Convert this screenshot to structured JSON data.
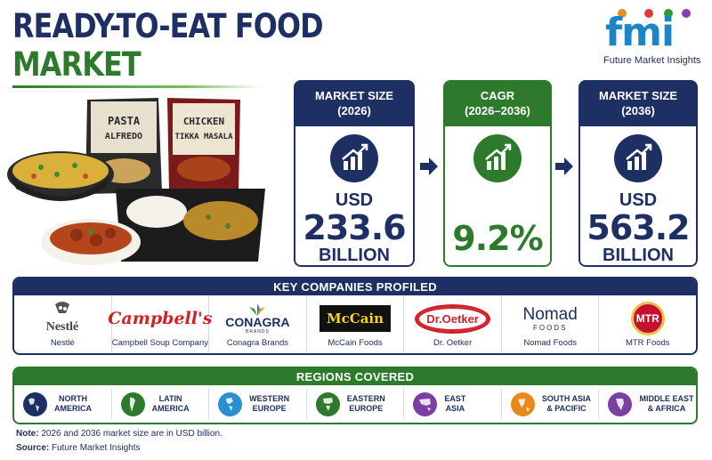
{
  "title": {
    "line1": "READY-TO-EAT FOOD",
    "line2": "MARKET"
  },
  "logo": {
    "mark": "fmi",
    "tagline": "Future Market Insights"
  },
  "food_image": {
    "pouch1": "PASTA\nALFREDO",
    "pouch2": "CHICKEN\nTIKKA MASALA"
  },
  "cards": [
    {
      "header": "MARKET SIZE\n(2026)",
      "icon": "growth-chart-icon",
      "currency": "USD",
      "value": "233.6",
      "unit": "BILLION",
      "color": "#1e2f63"
    },
    {
      "header": "CAGR\n(2026–2036)",
      "icon": "growth-chart-icon",
      "value": "9.2%",
      "color": "#2d7a2d"
    },
    {
      "header": "MARKET SIZE\n(2036)",
      "icon": "growth-chart-icon",
      "currency": "USD",
      "value": "563.2",
      "unit": "BILLION",
      "color": "#1e2f63"
    }
  ],
  "companies": {
    "heading": "KEY COMPANIES PROFILED",
    "items": [
      {
        "name": "Nestlé",
        "logo_text": "Nestlé"
      },
      {
        "name": "Campbell Soup Company",
        "logo_text": "Campbell's"
      },
      {
        "name": "Conagra Brands",
        "logo_text": "CONAGRA",
        "logo_sub": "BRANDS"
      },
      {
        "name": "McCain Foods",
        "logo_text": "McCain"
      },
      {
        "name": "Dr. Oetker",
        "logo_text": "Dr.Oetker"
      },
      {
        "name": "Nomad Foods",
        "logo_text": "Nomad",
        "logo_sub": "FOODS"
      },
      {
        "name": "MTR Foods",
        "logo_text": "MTR"
      }
    ]
  },
  "regions": {
    "heading": "REGIONS COVERED",
    "items": [
      {
        "name": "NORTH\nAMERICA",
        "color": "#1e2f63"
      },
      {
        "name": "LATIN\nAMERICA",
        "color": "#2d7a2d"
      },
      {
        "name": "WESTERN\nEUROPE",
        "color": "#2a8fd0"
      },
      {
        "name": "EASTERN\nEUROPE",
        "color": "#2d7a2d"
      },
      {
        "name": "EAST\nASIA",
        "color": "#7a3fa0"
      },
      {
        "name": "SOUTH ASIA\n& PACIFIC",
        "color": "#e88a1a"
      },
      {
        "name": "MIDDLE EAST\n& AFRICA",
        "color": "#7a3fa0"
      }
    ]
  },
  "footer": {
    "note_label": "Note:",
    "note_text": " 2026 and 2036 market size are in USD billion.",
    "source_label": "Source:",
    "source_text": " Future Market Insights"
  },
  "colors": {
    "navy": "#1e2f63",
    "green": "#2d7a2d",
    "blue": "#1a86c8"
  }
}
